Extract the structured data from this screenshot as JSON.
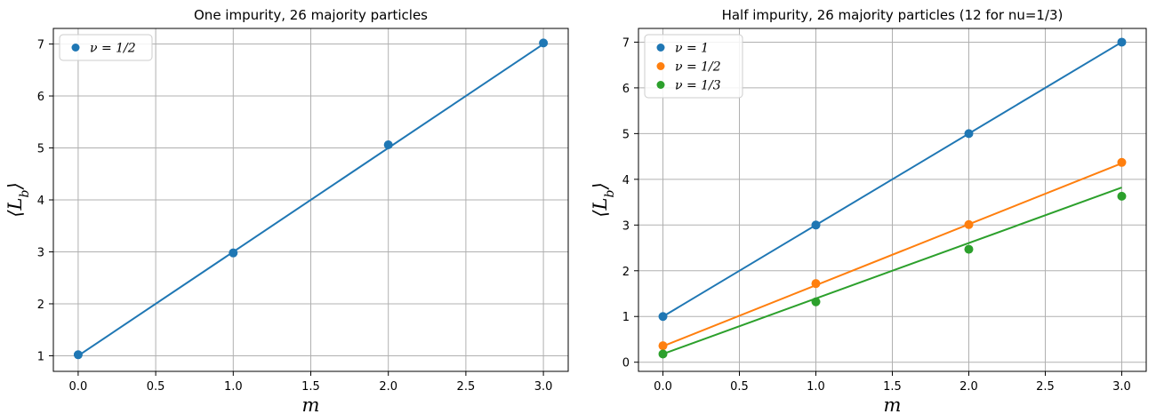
{
  "chart_data": [
    {
      "type": "scatter",
      "title": "One impurity, 26 majority particles",
      "xlabel": "m",
      "ylabel": "⟨L_b⟩",
      "xlim": [
        -0.16,
        3.16
      ],
      "ylim": [
        0.7,
        7.3
      ],
      "xticks": [
        "0.0",
        "0.5",
        "1.0",
        "1.5",
        "2.0",
        "2.5",
        "3.0"
      ],
      "yticks": [
        "1",
        "2",
        "3",
        "4",
        "5",
        "6",
        "7"
      ],
      "grid": true,
      "legend_position": "upper left",
      "series": [
        {
          "name": "ν = 1/2",
          "color": "#1f77b4",
          "x": [
            0,
            1,
            2,
            3
          ],
          "y": [
            1.02,
            2.98,
            5.06,
            7.02
          ],
          "fit": [
            [
              0,
              1.0
            ],
            [
              3,
              7.0
            ]
          ]
        }
      ]
    },
    {
      "type": "scatter",
      "title": "Half impurity, 26 majority particles (12 for nu=1/3)",
      "xlabel": "m",
      "ylabel": "⟨L_b⟩",
      "xlim": [
        -0.16,
        3.16
      ],
      "ylim": [
        -0.2,
        7.3
      ],
      "xticks": [
        "0.0",
        "0.5",
        "1.0",
        "1.5",
        "2.0",
        "2.5",
        "3.0"
      ],
      "yticks": [
        "0",
        "1",
        "2",
        "3",
        "4",
        "5",
        "6",
        "7"
      ],
      "grid": true,
      "legend_position": "upper left",
      "series": [
        {
          "name": "ν = 1",
          "color": "#1f77b4",
          "x": [
            0,
            1,
            2,
            3
          ],
          "y": [
            1.0,
            3.0,
            5.0,
            7.0
          ],
          "fit": [
            [
              0,
              1.0
            ],
            [
              3,
              7.0
            ]
          ]
        },
        {
          "name": "ν = 1/2",
          "color": "#ff7f0e",
          "x": [
            0,
            1,
            2,
            3
          ],
          "y": [
            0.36,
            1.72,
            3.01,
            4.37
          ],
          "fit": [
            [
              0,
              0.35
            ],
            [
              3,
              4.35
            ]
          ]
        },
        {
          "name": "ν = 1/3",
          "color": "#2ca02c",
          "x": [
            0,
            1,
            2,
            3
          ],
          "y": [
            0.18,
            1.32,
            2.47,
            3.63
          ],
          "fit": [
            [
              0,
              0.18
            ],
            [
              3,
              3.82
            ]
          ]
        }
      ]
    }
  ]
}
